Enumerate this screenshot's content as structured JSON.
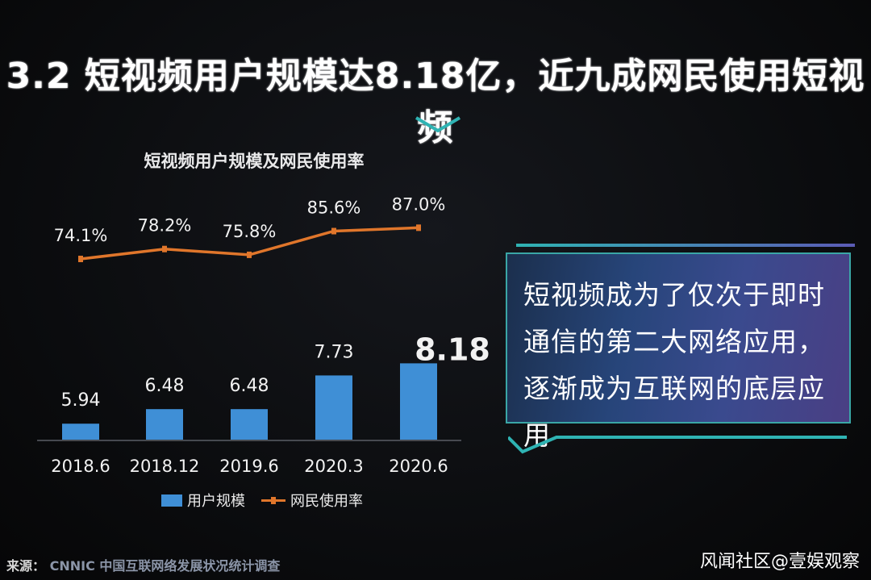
{
  "title": "3.2 短视频用户规模达8.18亿，近九成网民使用短视频",
  "callout": {
    "text": "短视频成为了仅次于即时通信的第二大网络应用，逐渐成为互联网的底层应用"
  },
  "source": {
    "label": "来源：",
    "text": "CNNIC 中国互联网络发展状况统计调查"
  },
  "watermark": "风闻社区@壹娱观察",
  "colors": {
    "bar": "#3f8fd6",
    "line": "#e0762b",
    "callout_border": "#3aa6a6",
    "chevron": "#2fb3b3"
  },
  "chart_data": {
    "type": "bar",
    "title": "短视频用户规模及网民使用率",
    "categories": [
      "2018.6",
      "2018.12",
      "2019.6",
      "2020.3",
      "2020.6"
    ],
    "series": [
      {
        "name": "用户规模",
        "type": "bar",
        "values": [
          5.94,
          6.48,
          6.48,
          7.73,
          8.18
        ],
        "labels": [
          "5.94",
          "6.48",
          "6.48",
          "7.73",
          "8.18"
        ]
      },
      {
        "name": "网民使用率",
        "type": "line",
        "values": [
          74.1,
          78.2,
          75.8,
          85.6,
          87.0
        ],
        "labels": [
          "74.1%",
          "78.2%",
          "75.8%",
          "85.6%",
          "87.0%"
        ]
      }
    ],
    "legend": "bottom",
    "grid": false
  }
}
